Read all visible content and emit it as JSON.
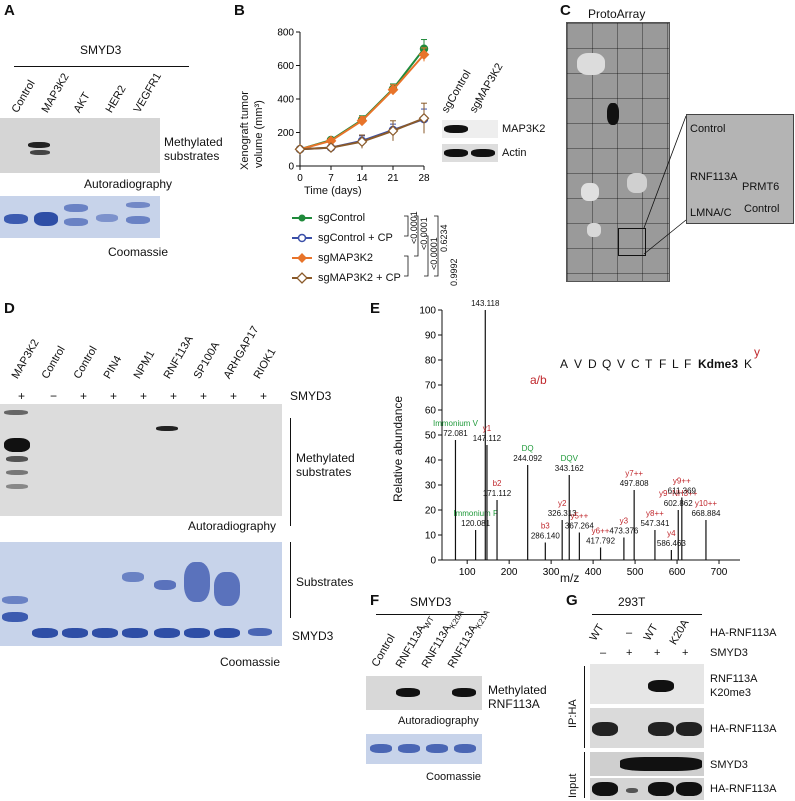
{
  "panels": {
    "A": {
      "letter": "A",
      "enzyme": "SMYD3",
      "lanes": [
        "Control",
        "MAP3K2",
        "AKT",
        "HER2",
        "VEGFR1"
      ],
      "blot_label_1": "Methylated",
      "blot_label_2": "substrates",
      "autorad": "Autoradiography",
      "coomassie": "Coomassie"
    },
    "B": {
      "letter": "B",
      "ylabel_1": "Xenograft tumor",
      "ylabel_2": "volume (mm³)",
      "xlabel": "Time (days)",
      "wb_lanes": [
        "sgControl",
        "sgMAP3K2"
      ],
      "wb_rows": [
        "MAP3K2",
        "Actin"
      ],
      "pvalues": [
        "<0.0001",
        "<0.0001",
        "<0.0001",
        "0.6234",
        "0.9992"
      ]
    },
    "C": {
      "letter": "C",
      "title": "ProtoArray",
      "spots": [
        "Control",
        "RNF113A",
        "PRMT6",
        "LMNA/C",
        "Control"
      ]
    },
    "D": {
      "letter": "D",
      "lanes": [
        "MAP3K2",
        "Control",
        "Control",
        "PIN4",
        "NPM1",
        "RNF113A",
        "SP100A",
        "ARHGAP17",
        "RIOK1"
      ],
      "signs": [
        "+",
        "−",
        "+",
        "+",
        "+",
        "+",
        "+",
        "+",
        "+"
      ],
      "enzyme": "SMYD3",
      "label_meth_1": "Methylated",
      "label_meth_2": "substrates",
      "autorad": "Autoradiography",
      "label_sub": "Substrates",
      "label_smyd3": "SMYD3",
      "coomassie": "Coomassie"
    },
    "E": {
      "letter": "E",
      "ylabel": "Relative abundance",
      "xlabel": "m/z",
      "peptide": [
        "A",
        "V",
        "D",
        "Q",
        "V",
        "C",
        "T",
        "F",
        "L",
        "F",
        "Kdme3",
        "K"
      ],
      "ab_label": "a/b",
      "y_label": "y",
      "peaks": [
        {
          "mz": 72.081,
          "label": "72.081",
          "ion": "Immonium V",
          "intensity": 48,
          "color": "green"
        },
        {
          "mz": 120.081,
          "label": "120.081",
          "ion": "Immonium F",
          "intensity": 12,
          "color": "green"
        },
        {
          "mz": 143.118,
          "label": "143.118",
          "ion": "a2",
          "intensity": 100,
          "color": "red"
        },
        {
          "mz": 147.112,
          "label": "147.112",
          "ion": "y1",
          "intensity": 46,
          "color": "red"
        },
        {
          "mz": 171.112,
          "label": "171.112",
          "ion": "b2",
          "intensity": 24,
          "color": "red"
        },
        {
          "mz": 244.092,
          "label": "244.092",
          "ion": "DQ",
          "intensity": 38,
          "color": "green"
        },
        {
          "mz": 286.14,
          "label": "286.140",
          "ion": "b3",
          "intensity": 7,
          "color": "red"
        },
        {
          "mz": 326.313,
          "label": "326.313",
          "ion": "y2",
          "intensity": 16,
          "color": "red"
        },
        {
          "mz": 343.162,
          "label": "343.162",
          "ion": "DQV",
          "intensity": 34,
          "color": "green"
        },
        {
          "mz": 367.264,
          "label": "367.264",
          "ion": "y5++",
          "intensity": 11,
          "color": "red"
        },
        {
          "mz": 417.792,
          "label": "417.792",
          "ion": "y6++",
          "intensity": 5,
          "color": "red"
        },
        {
          "mz": 473.376,
          "label": "473.376",
          "ion": "y3",
          "intensity": 9,
          "color": "red"
        },
        {
          "mz": 497.808,
          "label": "497.808",
          "ion": "y7++",
          "intensity": 28,
          "color": "red"
        },
        {
          "mz": 547.341,
          "label": "547.341",
          "ion": "y8++",
          "intensity": 12,
          "color": "red"
        },
        {
          "mz": 586.463,
          "label": "586.463",
          "ion": "y4",
          "intensity": 4,
          "color": "red"
        },
        {
          "mz": 602.862,
          "label": "602.862",
          "ion": "y9−NH3++",
          "intensity": 20,
          "color": "red"
        },
        {
          "mz": 611.369,
          "label": "611.369",
          "ion": "y9++",
          "intensity": 25,
          "color": "red"
        },
        {
          "mz": 668.884,
          "label": "668.884",
          "ion": "y10++",
          "intensity": 16,
          "color": "red"
        }
      ]
    },
    "F": {
      "letter": "F",
      "enzyme": "SMYD3",
      "lanes": [
        "Control",
        "RNF113A",
        "RNF113A",
        "RNF113A"
      ],
      "lane_subs": [
        "",
        "WT",
        "K20A",
        "K21A"
      ],
      "label_1": "Methylated",
      "label_2": "RNF113A",
      "autorad": "Autoradiography",
      "coomassie": "Coomassie"
    },
    "G": {
      "letter": "G",
      "cell": "293T",
      "row1": [
        "WT",
        "–",
        "WT",
        "K20A"
      ],
      "row1_label": "HA-RNF113A",
      "row2": [
        "–",
        "+",
        "+",
        "+"
      ],
      "row2_label": "SMYD3",
      "ip": "IP:HA",
      "input": "Input",
      "blots": [
        "RNF113A",
        "K20me3",
        "HA-RNF113A",
        "SMYD3",
        "HA-RNF113A"
      ]
    }
  },
  "chart_data": {
    "type": "line",
    "x": [
      0,
      7,
      14,
      21,
      28
    ],
    "xlabel": "Time (days)",
    "ylabel": "Xenograft tumor volume (mm³)",
    "xlim": [
      0,
      28
    ],
    "ylim": [
      0,
      800
    ],
    "xticks": [
      0,
      7,
      14,
      21,
      28
    ],
    "yticks": [
      0,
      200,
      400,
      600,
      800
    ],
    "legend_position": "bottom",
    "series": [
      {
        "name": "sgControl",
        "values": [
          100,
          155,
          275,
          460,
          700
        ],
        "errors": [
          8,
          15,
          25,
          30,
          55
        ],
        "color": "#1f8a3b",
        "marker": "circle-filled"
      },
      {
        "name": "sgControl + CP",
        "values": [
          100,
          110,
          150,
          215,
          280
        ],
        "errors": [
          8,
          12,
          30,
          35,
          60
        ],
        "color": "#3a4fa8",
        "marker": "circle-open"
      },
      {
        "name": "sgMAP3K2",
        "values": [
          100,
          150,
          270,
          455,
          665
        ],
        "errors": [
          8,
          15,
          25,
          30,
          40
        ],
        "color": "#e8742a",
        "marker": "diamond-filled"
      },
      {
        "name": "sgMAP3K2 + CP",
        "values": [
          100,
          110,
          145,
          210,
          285
        ],
        "errors": [
          8,
          14,
          40,
          60,
          90
        ],
        "color": "#8a5a2a",
        "marker": "diamond-open"
      }
    ]
  }
}
